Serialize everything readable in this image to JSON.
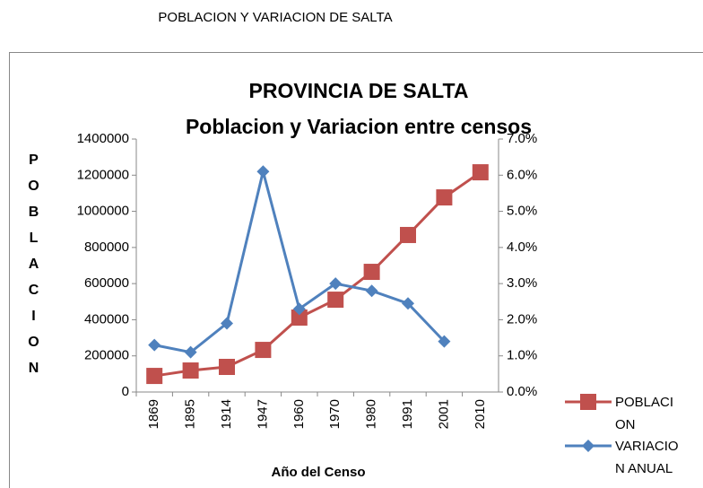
{
  "header": "POBLACION Y VARIACION DE SALTA",
  "chart_data": {
    "type": "line",
    "title": "PROVINCIA DE SALTA",
    "subtitle": "Poblacion y Variacion entre censos",
    "x_label": "Año del Censo",
    "y_label": "POBLACION",
    "categories": [
      "1869",
      "1895",
      "1914",
      "1947",
      "1960",
      "1970",
      "1980",
      "1991",
      "2001",
      "2010"
    ],
    "series": [
      {
        "name": "POBLACION",
        "color": "#c0504d",
        "marker": "square",
        "values": [
          89000,
          119000,
          139000,
          233000,
          412000,
          511000,
          665000,
          869000,
          1077000,
          1216000
        ]
      },
      {
        "name": "VARIACION ANUAL",
        "color": "#4f81bd",
        "marker": "diamond",
        "axis": "y2",
        "values": [
          1.3,
          1.1,
          1.9,
          6.1,
          2.3,
          3.0,
          2.8,
          2.45,
          1.4,
          null
        ]
      }
    ],
    "ylim": [
      0,
      1400000
    ],
    "yticks": [
      0,
      200000,
      400000,
      600000,
      800000,
      1000000,
      1200000,
      1400000
    ],
    "y2lim": [
      0,
      7
    ],
    "y2ticks": [
      {
        "value": 0,
        "label": "0.0%"
      },
      {
        "value": 1,
        "label": "1.0%"
      },
      {
        "value": 2,
        "label": "2.0%"
      },
      {
        "value": 3,
        "label": "3.0%"
      },
      {
        "value": 4,
        "label": "4.0%"
      },
      {
        "value": 5,
        "label": "5.0%"
      },
      {
        "value": 6,
        "label": "6.0%"
      },
      {
        "value": 7,
        "label": "7.0%"
      }
    ],
    "grid": false,
    "legend": "bottom-right"
  }
}
